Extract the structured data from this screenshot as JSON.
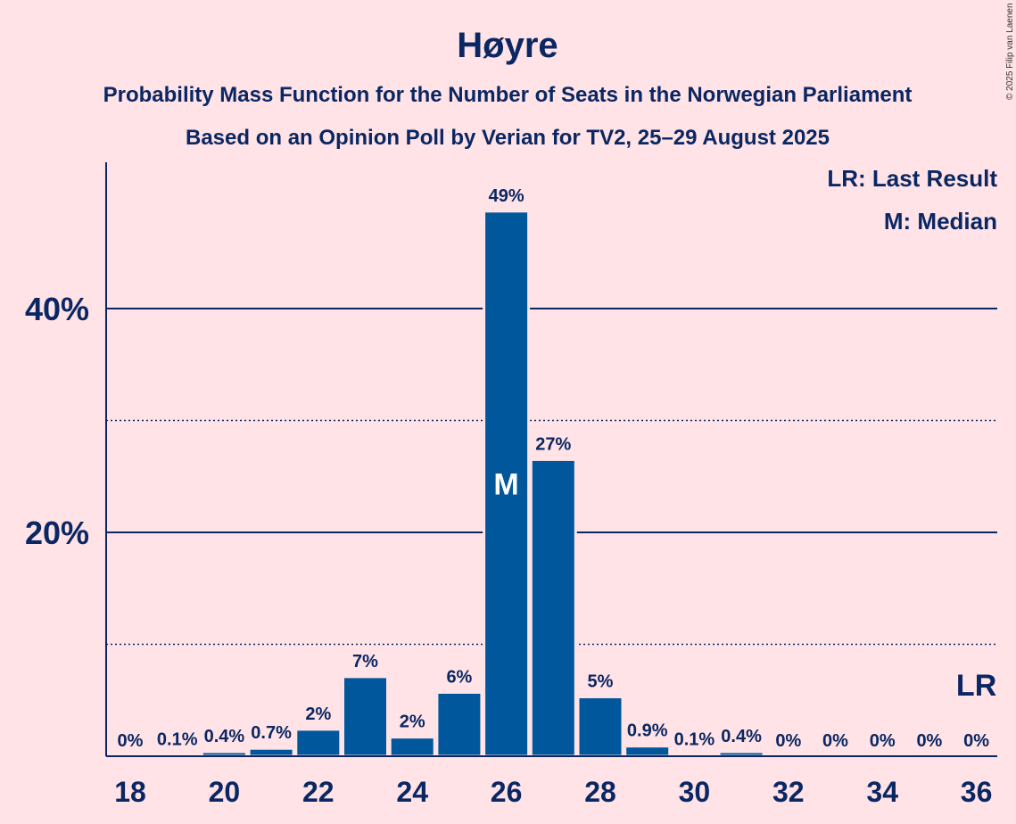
{
  "colors": {
    "background": "#FFE3E6",
    "bar": "#00579B",
    "text": "#0A2763",
    "axis": "#0A2763"
  },
  "copyright": "© 2025 Filip van Laenen",
  "chart_data": {
    "type": "bar",
    "title": "Høyre",
    "subtitle": "Probability Mass Function for the Number of Seats in the Norwegian Parliament",
    "subtitle2": "Based on an Opinion Poll by Verian for TV2, 25–29 August 2025",
    "legend": [
      "LR: Last Result",
      "M: Median"
    ],
    "xlabel": "",
    "ylabel": "",
    "ylim": [
      0,
      53
    ],
    "yticks": [
      {
        "value": 20,
        "label": "20%"
      },
      {
        "value": 40,
        "label": "40%"
      }
    ],
    "dotted_lines": [
      10,
      30
    ],
    "x": [
      18,
      19,
      20,
      21,
      22,
      23,
      24,
      25,
      26,
      27,
      28,
      29,
      30,
      31,
      32,
      33,
      34,
      35,
      36
    ],
    "xtick_labels": [
      "18",
      "20",
      "22",
      "24",
      "26",
      "28",
      "30",
      "32",
      "34",
      "36"
    ],
    "xtick_values": [
      18,
      20,
      22,
      24,
      26,
      28,
      30,
      32,
      34,
      36
    ],
    "values": [
      0,
      0.1,
      0.4,
      0.7,
      2.4,
      7.1,
      1.7,
      5.7,
      48.7,
      26.5,
      5.3,
      0.9,
      0.1,
      0.4,
      0,
      0,
      0,
      0,
      0
    ],
    "labels": [
      "0%",
      "0.1%",
      "0.4%",
      "0.7%",
      "2%",
      "7%",
      "2%",
      "6%",
      "49%",
      "27%",
      "5%",
      "0.9%",
      "0.1%",
      "0.4%",
      "0%",
      "0%",
      "0%",
      "0%",
      "0%"
    ],
    "median": {
      "x": 26,
      "label": "M"
    },
    "last_result": {
      "x": 36,
      "label": "LR"
    }
  }
}
